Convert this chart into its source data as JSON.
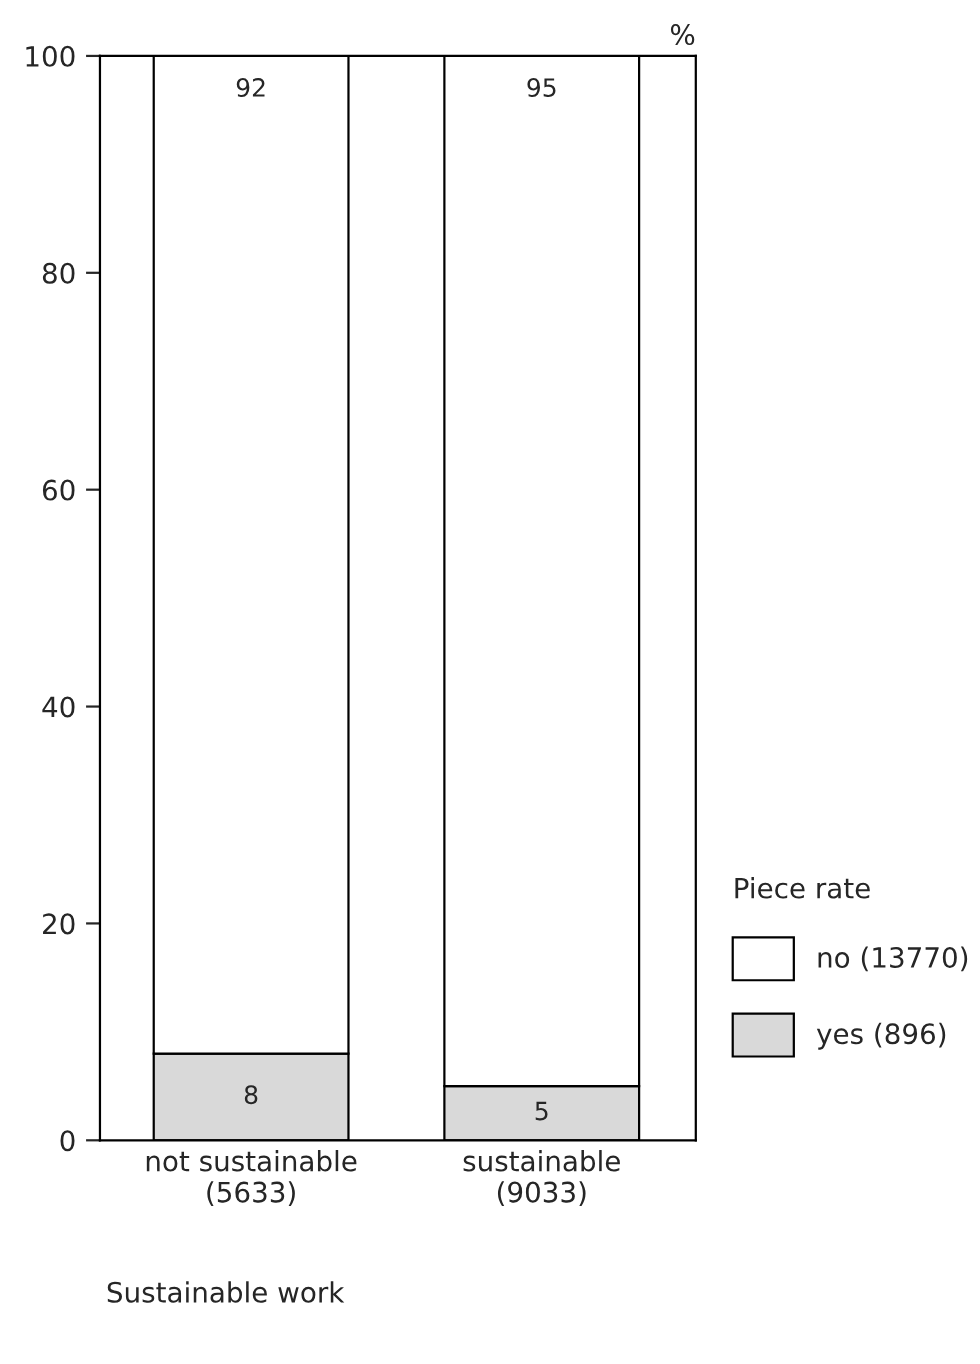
{
  "chart_data": {
    "type": "bar",
    "stacked": true,
    "categories": [
      "not sustainable\n(5633)",
      "sustainable\n(9033)"
    ],
    "series": [
      {
        "name": "yes (896)",
        "color": "#d9d9d9",
        "values": [
          8,
          5
        ]
      },
      {
        "name": "no (13770)",
        "color": "#ffffff",
        "values": [
          92,
          95
        ]
      }
    ],
    "xlabel": "Sustainable work",
    "ylabel": "%",
    "legend_title": "Piece rate",
    "legend": "right",
    "ylim": [
      0,
      100
    ],
    "yticks": [
      0,
      20,
      40,
      60,
      80,
      100
    ],
    "data_labels": true,
    "grid": false
  }
}
